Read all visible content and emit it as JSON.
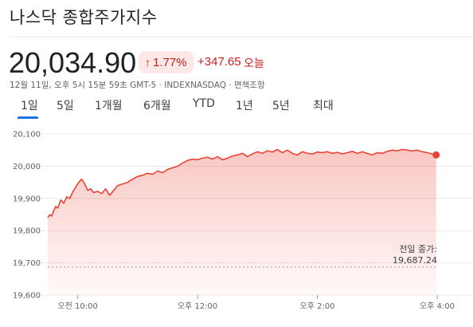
{
  "header": {
    "title": "나스닥 종합주가지수",
    "price": "20,034.90",
    "change_pct": "1.77%",
    "change_abs": "+347.65",
    "change_period": "오늘",
    "meta": "12월 11일, 오후 5시 15분 59초 GMT-5 · INDEXNASDAQ · 면책조항"
  },
  "tabs": [
    {
      "label": "1일",
      "active": true
    },
    {
      "label": "5일",
      "active": false
    },
    {
      "label": "1개월",
      "active": false
    },
    {
      "label": "6개월",
      "active": false
    },
    {
      "label": "YTD",
      "active": false
    },
    {
      "label": "1년",
      "active": false
    },
    {
      "label": "5년",
      "active": false
    },
    {
      "label": "최대",
      "active": false
    }
  ],
  "chart_data": {
    "type": "area",
    "line_color": "#ea4335",
    "ylim": [
      19600,
      20100
    ],
    "y_ticks": [
      19600,
      19700,
      19800,
      19900,
      20000,
      20100
    ],
    "y_tick_labels": [
      "19,600",
      "19,700",
      "19,800",
      "19,900",
      "20,000",
      "20,100"
    ],
    "xlim_minutes": [
      570,
      960
    ],
    "x_ticks": [
      {
        "minute": 600,
        "label": "오전 10:00"
      },
      {
        "minute": 720,
        "label": "오후 12:00"
      },
      {
        "minute": 840,
        "label": "오후 2:00"
      },
      {
        "minute": 960,
        "label": "오후 4:00"
      }
    ],
    "previous_close": {
      "label": "전일 종가:",
      "value": "19,687.24",
      "y": 19687.24
    },
    "series": [
      {
        "x": [
          570,
          572,
          574,
          576,
          578,
          580,
          583,
          586,
          589,
          592,
          595,
          598,
          601,
          604,
          607,
          610,
          613,
          616,
          620,
          624,
          628,
          632,
          636,
          640,
          645,
          650,
          655,
          660,
          665,
          670,
          675,
          680,
          685,
          690,
          695,
          700,
          705,
          710,
          715,
          720,
          725,
          730,
          735,
          740,
          745,
          750,
          755,
          760,
          765,
          770,
          775,
          780,
          785,
          790,
          795,
          800,
          805,
          810,
          815,
          820,
          825,
          830,
          835,
          840,
          845,
          850,
          855,
          860,
          865,
          870,
          875,
          880,
          885,
          890,
          895,
          900,
          905,
          910,
          915,
          920,
          925,
          930,
          935,
          940,
          945,
          950,
          955,
          959
        ],
        "y": [
          19840,
          19850,
          19845,
          19862,
          19875,
          19870,
          19895,
          19885,
          19905,
          19900,
          19920,
          19935,
          19950,
          19960,
          19945,
          19925,
          19930,
          19918,
          19922,
          19915,
          19930,
          19910,
          19925,
          19940,
          19945,
          19950,
          19960,
          19968,
          19972,
          19978,
          19975,
          19985,
          19980,
          19990,
          19995,
          20000,
          20010,
          20018,
          20022,
          20020,
          20025,
          20028,
          20022,
          20030,
          20020,
          20025,
          20032,
          20035,
          20040,
          20030,
          20038,
          20045,
          20040,
          20048,
          20044,
          20052,
          20042,
          20050,
          20040,
          20035,
          20045,
          20040,
          20038,
          20044,
          20042,
          20045,
          20040,
          20043,
          20038,
          20042,
          20046,
          20040,
          20045,
          20040,
          20035,
          20042,
          20040,
          20046,
          20050,
          20048,
          20052,
          20050,
          20047,
          20050,
          20045,
          20042,
          20038,
          20034.9
        ]
      }
    ]
  }
}
